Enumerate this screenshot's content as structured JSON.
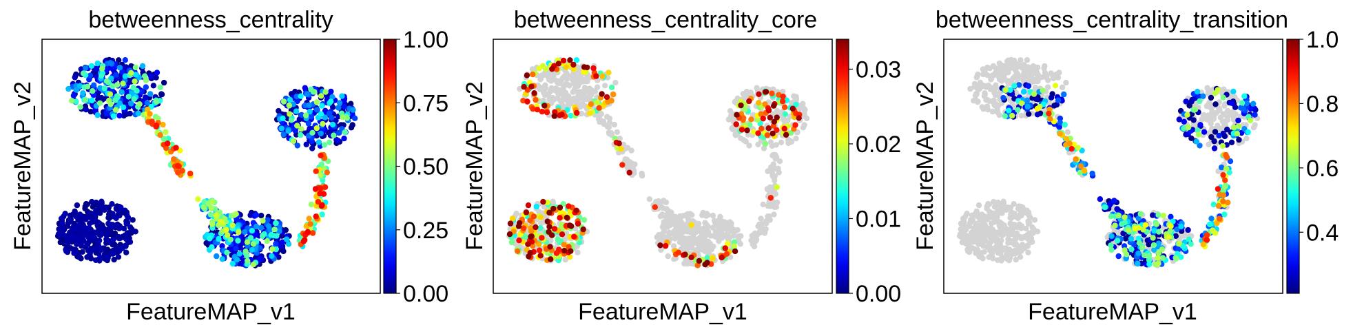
{
  "colormap": "jet",
  "background_point_color": "#d3d3d3",
  "chart_data": [
    {
      "type": "scatter",
      "title": "betweenness_centrality",
      "xlabel": "FeatureMAP_v1",
      "ylabel": "FeatureMAP_v2",
      "colorbar": {
        "range": [
          0,
          1
        ],
        "ticks": [
          "0.00",
          "0.25",
          "0.50",
          "0.75",
          "1.00"
        ],
        "tick_values": [
          0,
          0.25,
          0.5,
          0.75,
          1.0
        ]
      },
      "overlay_only": false,
      "notes": "all cells colored; most near 0, higher values along branch connections"
    },
    {
      "type": "scatter",
      "title": "betweenness_centrality_core",
      "xlabel": "FeatureMAP_v1",
      "ylabel": "FeatureMAP_v2",
      "colorbar": {
        "range": [
          0,
          0.034
        ],
        "ticks": [
          "0.00",
          "0.01",
          "0.02",
          "0.03"
        ],
        "tick_values": [
          0,
          0.01,
          0.02,
          0.03
        ]
      },
      "overlay_only": true,
      "notes": "core cells colored, remaining cells grey"
    },
    {
      "type": "scatter",
      "title": "betweenness_centrality_transition",
      "xlabel": "FeatureMAP_v1",
      "ylabel": "FeatureMAP_v2",
      "colorbar": {
        "range": [
          0.21,
          1.0
        ],
        "ticks": [
          "0.4",
          "0.6",
          "0.8",
          "1.0"
        ],
        "tick_values": [
          0.4,
          0.6,
          0.8,
          1.0
        ]
      },
      "overlay_only": true,
      "notes": "transition cells colored, remaining cells grey"
    }
  ]
}
